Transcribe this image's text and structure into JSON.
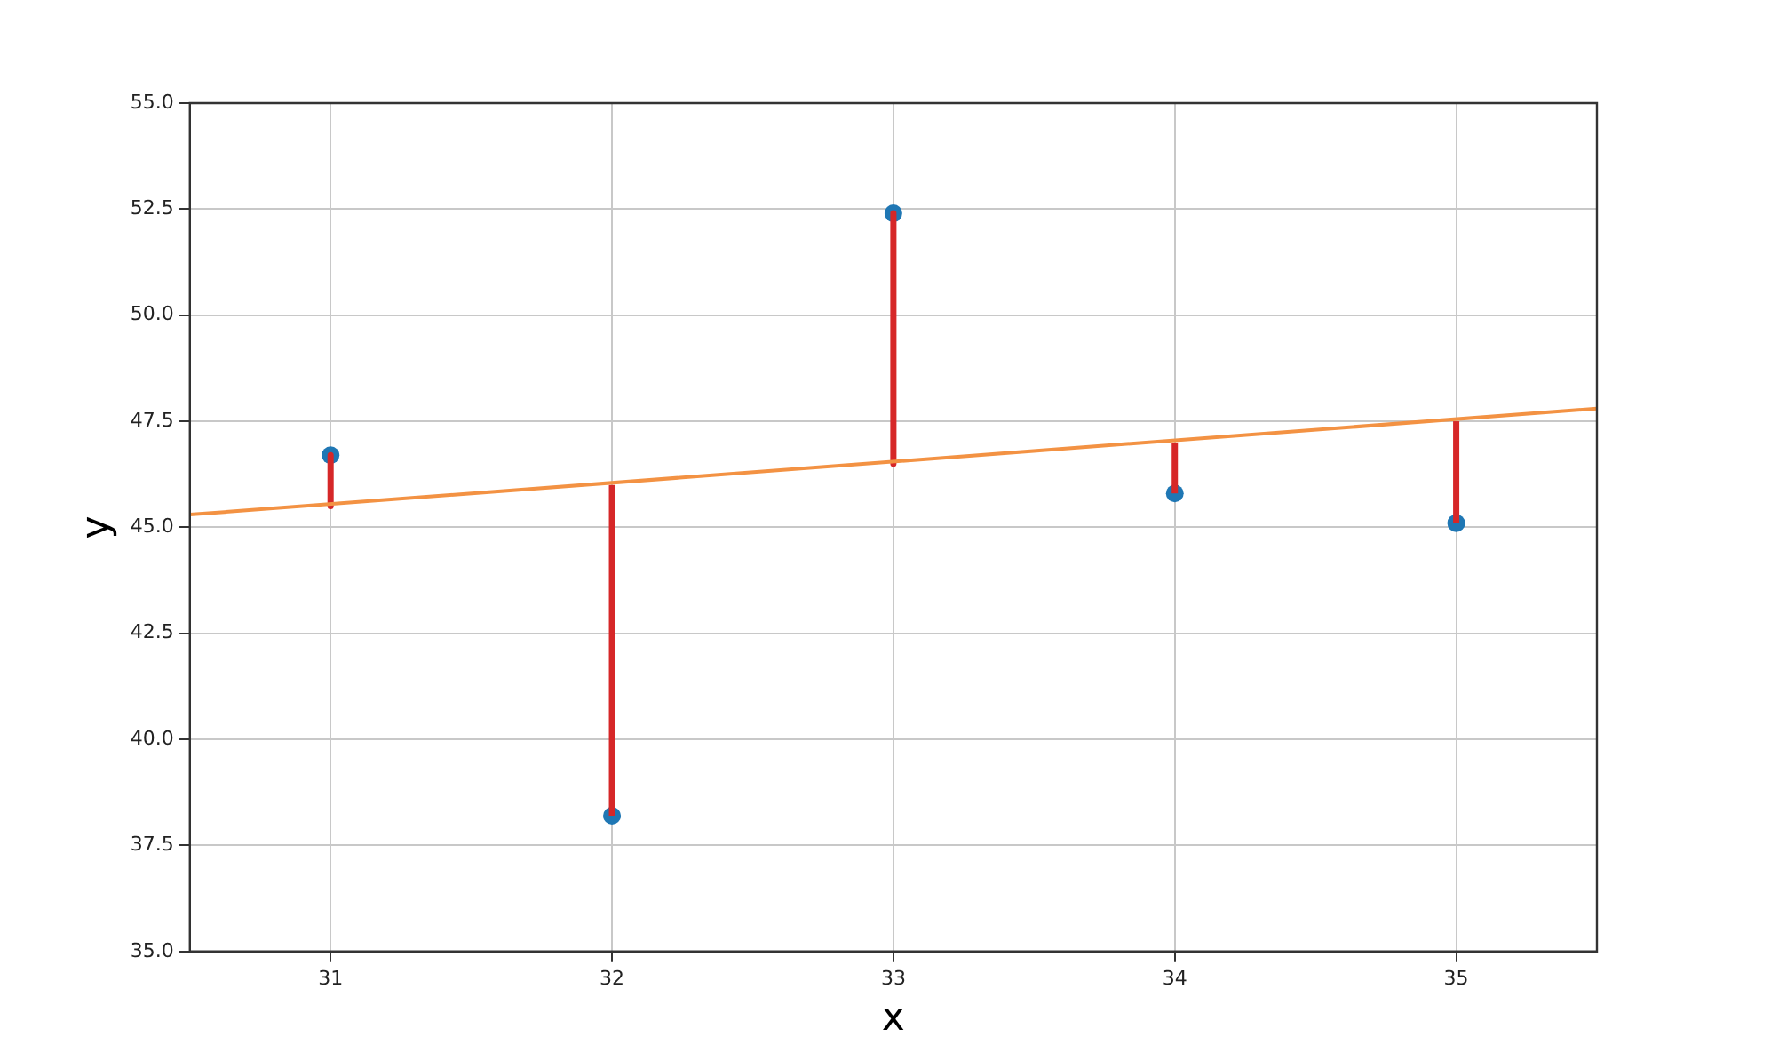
{
  "chart_data": {
    "type": "scatter",
    "xlabel": "x",
    "ylabel": "y",
    "xlim": [
      30.5,
      35.5
    ],
    "xticks": [
      31,
      32,
      33,
      34,
      35
    ],
    "ylim": [
      35,
      55
    ],
    "yticks": [
      {
        "value": 35,
        "label": "35.0"
      },
      {
        "value": 37.5,
        "label": "37.5"
      },
      {
        "value": 40,
        "label": "40.0"
      },
      {
        "value": 42.5,
        "label": "42.5"
      },
      {
        "value": 45,
        "label": "45.0"
      },
      {
        "value": 47.5,
        "label": "47.5"
      },
      {
        "value": 50,
        "label": "50.0"
      },
      {
        "value": 52.5,
        "label": "52.5"
      },
      {
        "value": 55,
        "label": "55.0"
      }
    ],
    "grid": true,
    "legend": false,
    "series": [
      {
        "type": "line",
        "color": "#f39243",
        "x": [
          30.5,
          35.5
        ],
        "values": [
          45.3,
          47.8
        ],
        "marker": "none",
        "line_style": "solid"
      },
      {
        "type": "line",
        "color": "#d62728",
        "x": [
          31,
          31
        ],
        "values": [
          46.7,
          45.5
        ],
        "marker": "none",
        "line_style": "solid"
      },
      {
        "type": "line",
        "color": "#d62728",
        "x": [
          32,
          32
        ],
        "values": [
          38.2,
          46.0
        ],
        "marker": "none",
        "line_style": "solid"
      },
      {
        "type": "line",
        "color": "#d62728",
        "x": [
          33,
          33
        ],
        "values": [
          52.4,
          46.5
        ],
        "marker": "none",
        "line_style": "solid"
      },
      {
        "type": "line",
        "color": "#d62728",
        "x": [
          34,
          34
        ],
        "values": [
          45.8,
          47.0
        ],
        "marker": "none",
        "line_style": "solid"
      },
      {
        "type": "line",
        "color": "#d62728",
        "x": [
          35,
          35
        ],
        "values": [
          45.1,
          47.5
        ],
        "marker": "none",
        "line_style": "solid"
      },
      {
        "type": "scatter",
        "color": "#1f77b4",
        "x": [
          31,
          32,
          33,
          34,
          35
        ],
        "values": [
          46.7,
          38.2,
          52.4,
          45.8,
          45.1
        ],
        "marker": "circle"
      }
    ]
  }
}
